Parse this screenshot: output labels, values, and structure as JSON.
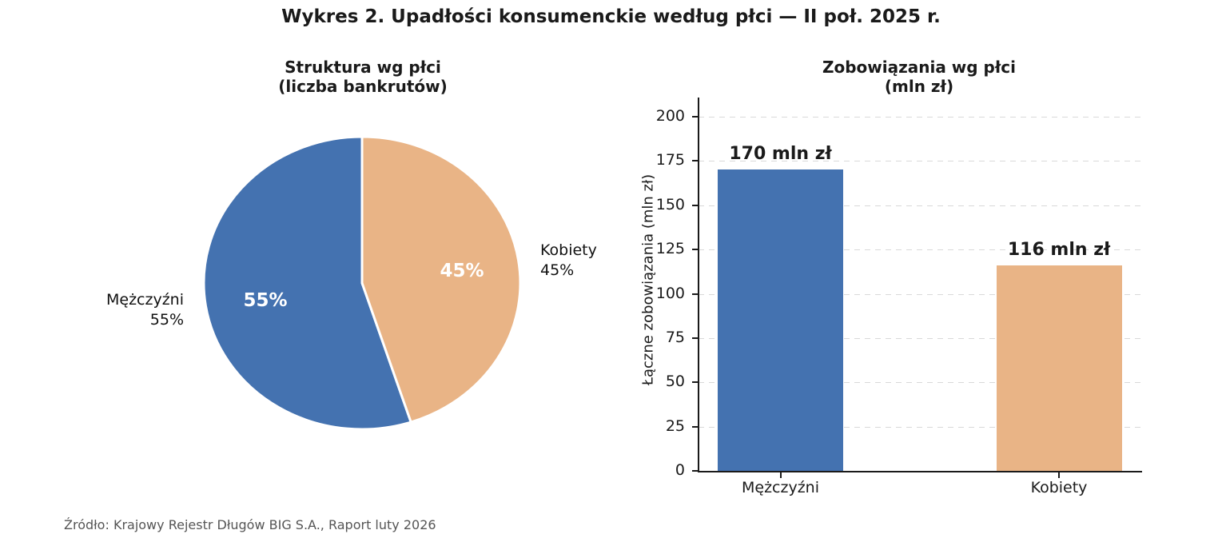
{
  "figure": {
    "title": "Wykres 2. Upadłości konsumenckie według płci — II poł. 2025 r.",
    "source": "Źródło: Krajowy Rejestr Długów BIG S.A., Raport luty 2026"
  },
  "chart_data": [
    {
      "type": "pie",
      "title": "Struktura wg płci (liczba bankrutów)",
      "title_lines": [
        "Struktura wg płci",
        "(liczba bankrutów)"
      ],
      "labels": [
        "Mężczyźni",
        "Kobiety"
      ],
      "keys": [
        "men",
        "women"
      ],
      "values": [
        55,
        45
      ],
      "unit": "percent",
      "pct_labels": [
        "55%",
        "45%"
      ],
      "colors": [
        "#4472b0",
        "#e9b486"
      ],
      "edge_color": "#ffffff",
      "start_angle_deg": 90,
      "direction": "counterclockwise"
    },
    {
      "type": "bar",
      "title": "Zobowiązania wg płci (mln zł)",
      "title_lines": [
        "Zobowiązania wg płci",
        "(mln zł)"
      ],
      "categories": [
        "Mężczyźni",
        "Kobiety"
      ],
      "keys": [
        "men",
        "women"
      ],
      "values": [
        170,
        116
      ],
      "bar_labels": [
        "170 mln zł",
        "116 mln zł"
      ],
      "colors": [
        "#4472b0",
        "#e9b486"
      ],
      "ylabel": "Łączne zobowiązania (mln zł)",
      "ylim": [
        0,
        200
      ],
      "yticks": [
        0,
        25,
        50,
        75,
        100,
        125,
        150,
        175,
        200
      ],
      "grid": {
        "axis": "y",
        "style": "dashed",
        "color": "#d9d9d9"
      },
      "legend": "none"
    }
  ],
  "style": {
    "background": "#ffffff",
    "text_color": "#1a1a1a",
    "source_color": "#555555",
    "axis_color": "#1a1a1a"
  }
}
